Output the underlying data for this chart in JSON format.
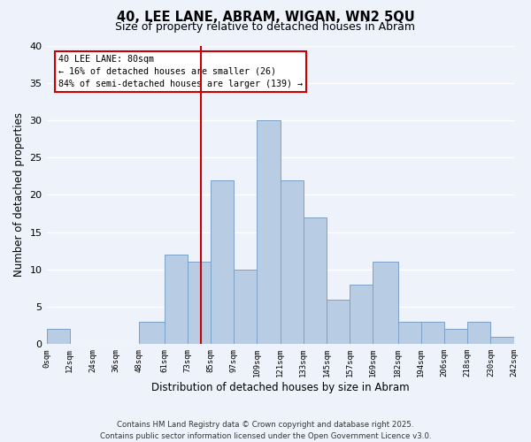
{
  "title": "40, LEE LANE, ABRAM, WIGAN, WN2 5QU",
  "subtitle": "Size of property relative to detached houses in Abram",
  "xlabel": "Distribution of detached houses by size in Abram",
  "ylabel": "Number of detached properties",
  "bar_color": "#b8cce4",
  "bar_edge_color": "#7ca1c8",
  "background_color": "#eef2fb",
  "grid_color": "#ffffff",
  "vline_x": 80,
  "vline_color": "#cc0000",
  "annotation_title": "40 LEE LANE: 80sqm",
  "annotation_line1": "← 16% of detached houses are smaller (26)",
  "annotation_line2": "84% of semi-detached houses are larger (139) →",
  "bin_edges": [
    0,
    12,
    24,
    36,
    48,
    61,
    73,
    85,
    97,
    109,
    121,
    133,
    145,
    157,
    169,
    182,
    194,
    206,
    218,
    230,
    242
  ],
  "bin_counts": [
    2,
    0,
    0,
    0,
    3,
    12,
    11,
    22,
    10,
    30,
    22,
    17,
    6,
    8,
    11,
    3,
    3,
    2,
    3,
    1
  ],
  "xlim": [
    0,
    242
  ],
  "ylim": [
    0,
    40
  ],
  "yticks": [
    0,
    5,
    10,
    15,
    20,
    25,
    30,
    35,
    40
  ],
  "xtick_labels": [
    "0sqm",
    "12sqm",
    "24sqm",
    "36sqm",
    "48sqm",
    "61sqm",
    "73sqm",
    "85sqm",
    "97sqm",
    "109sqm",
    "121sqm",
    "133sqm",
    "145sqm",
    "157sqm",
    "169sqm",
    "182sqm",
    "194sqm",
    "206sqm",
    "218sqm",
    "230sqm",
    "242sqm"
  ],
  "footer_line1": "Contains HM Land Registry data © Crown copyright and database right 2025.",
  "footer_line2": "Contains public sector information licensed under the Open Government Licence v3.0."
}
